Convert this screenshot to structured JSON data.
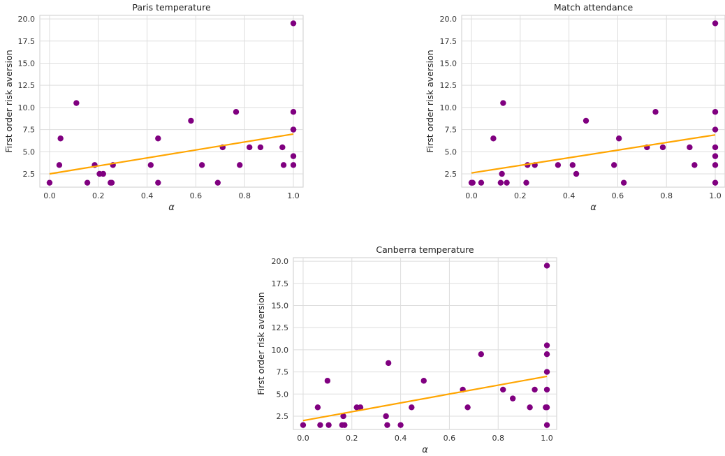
{
  "colors": {
    "points": "#800080",
    "fit_line": "#FFA500",
    "grid": "#DDDDDD",
    "spine": "#CCCCCC"
  },
  "chart_data": [
    {
      "type": "scatter",
      "title": "Paris temperature",
      "xlabel": "α",
      "ylabel": "First order risk aversion",
      "xlim": [
        -0.04,
        1.04
      ],
      "ylim": [
        1.0,
        20.4
      ],
      "xticks": [
        "0.0",
        "0.2",
        "0.4",
        "0.6",
        "0.8",
        "1.0"
      ],
      "xtick_values": [
        0.0,
        0.2,
        0.4,
        0.6,
        0.8,
        1.0
      ],
      "yticks": [
        "2.5",
        "5.0",
        "7.5",
        "10.0",
        "12.5",
        "15.0",
        "17.5",
        "20.0"
      ],
      "ytick_values": [
        2.5,
        5.0,
        7.5,
        10.0,
        12.5,
        15.0,
        17.5,
        20.0
      ],
      "grid": true,
      "points": [
        [
          0.0,
          1.5
        ],
        [
          0.04,
          3.5
        ],
        [
          0.045,
          6.5
        ],
        [
          0.11,
          10.5
        ],
        [
          0.155,
          1.5
        ],
        [
          0.185,
          3.5
        ],
        [
          0.205,
          2.5
        ],
        [
          0.22,
          2.5
        ],
        [
          0.25,
          1.5
        ],
        [
          0.255,
          1.5
        ],
        [
          0.26,
          3.5
        ],
        [
          0.415,
          3.5
        ],
        [
          0.445,
          1.5
        ],
        [
          0.445,
          6.5
        ],
        [
          0.58,
          8.5
        ],
        [
          0.625,
          3.5
        ],
        [
          0.69,
          1.5
        ],
        [
          0.71,
          5.5
        ],
        [
          0.765,
          9.5
        ],
        [
          0.78,
          3.5
        ],
        [
          0.82,
          5.5
        ],
        [
          0.865,
          5.5
        ],
        [
          0.955,
          5.5
        ],
        [
          0.96,
          3.5
        ],
        [
          1.0,
          19.5
        ],
        [
          1.0,
          9.5
        ],
        [
          1.0,
          7.5
        ],
        [
          1.0,
          7.5
        ],
        [
          1.0,
          4.5
        ],
        [
          1.0,
          3.5
        ]
      ],
      "fit_line": [
        [
          0.0,
          2.5
        ],
        [
          1.0,
          7.0
        ]
      ]
    },
    {
      "type": "scatter",
      "title": "Match attendance",
      "xlabel": "α",
      "ylabel": "First order risk aversion",
      "xlim": [
        -0.04,
        1.04
      ],
      "ylim": [
        1.0,
        20.4
      ],
      "xticks": [
        "0.0",
        "0.2",
        "0.4",
        "0.6",
        "0.8",
        "1.0"
      ],
      "xtick_values": [
        0.0,
        0.2,
        0.4,
        0.6,
        0.8,
        1.0
      ],
      "yticks": [
        "2.5",
        "5.0",
        "7.5",
        "10.0",
        "12.5",
        "15.0",
        "17.5",
        "20.0"
      ],
      "ytick_values": [
        2.5,
        5.0,
        7.5,
        10.0,
        12.5,
        15.0,
        17.5,
        20.0
      ],
      "grid": true,
      "points": [
        [
          0.0,
          1.5
        ],
        [
          0.005,
          1.5
        ],
        [
          0.04,
          1.5
        ],
        [
          0.09,
          6.5
        ],
        [
          0.12,
          1.5
        ],
        [
          0.125,
          2.5
        ],
        [
          0.13,
          10.5
        ],
        [
          0.145,
          1.5
        ],
        [
          0.225,
          1.5
        ],
        [
          0.23,
          3.5
        ],
        [
          0.26,
          3.5
        ],
        [
          0.355,
          3.5
        ],
        [
          0.415,
          3.5
        ],
        [
          0.43,
          2.5
        ],
        [
          0.47,
          8.5
        ],
        [
          0.585,
          3.5
        ],
        [
          0.605,
          6.5
        ],
        [
          0.625,
          1.5
        ],
        [
          0.72,
          5.5
        ],
        [
          0.755,
          9.5
        ],
        [
          0.785,
          5.5
        ],
        [
          0.895,
          5.5
        ],
        [
          0.915,
          3.5
        ],
        [
          1.0,
          19.5
        ],
        [
          1.0,
          9.5
        ],
        [
          1.0,
          7.5
        ],
        [
          1.0,
          5.5
        ],
        [
          1.0,
          4.5
        ],
        [
          1.0,
          3.5
        ],
        [
          1.0,
          1.5
        ]
      ],
      "fit_line": [
        [
          0.0,
          2.6
        ],
        [
          1.0,
          6.9
        ]
      ]
    },
    {
      "type": "scatter",
      "title": "Canberra temperature",
      "xlabel": "α",
      "ylabel": "First order risk aversion",
      "xlim": [
        -0.04,
        1.04
      ],
      "ylim": [
        1.0,
        20.4
      ],
      "xticks": [
        "0.0",
        "0.2",
        "0.4",
        "0.6",
        "0.8",
        "1.0"
      ],
      "xtick_values": [
        0.0,
        0.2,
        0.4,
        0.6,
        0.8,
        1.0
      ],
      "yticks": [
        "2.5",
        "5.0",
        "7.5",
        "10.0",
        "12.5",
        "15.0",
        "17.5",
        "20.0"
      ],
      "ytick_values": [
        2.5,
        5.0,
        7.5,
        10.0,
        12.5,
        15.0,
        17.5,
        20.0
      ],
      "grid": true,
      "points": [
        [
          0.0,
          1.5
        ],
        [
          0.06,
          3.5
        ],
        [
          0.07,
          1.5
        ],
        [
          0.1,
          6.5
        ],
        [
          0.105,
          1.5
        ],
        [
          0.16,
          1.5
        ],
        [
          0.165,
          2.5
        ],
        [
          0.17,
          1.5
        ],
        [
          0.22,
          3.5
        ],
        [
          0.235,
          3.5
        ],
        [
          0.34,
          2.5
        ],
        [
          0.345,
          1.5
        ],
        [
          0.35,
          8.5
        ],
        [
          0.4,
          1.5
        ],
        [
          0.445,
          3.5
        ],
        [
          0.495,
          6.5
        ],
        [
          0.655,
          5.5
        ],
        [
          0.675,
          3.5
        ],
        [
          0.73,
          9.5
        ],
        [
          0.82,
          5.5
        ],
        [
          0.86,
          4.5
        ],
        [
          0.93,
          3.5
        ],
        [
          0.95,
          5.5
        ],
        [
          0.995,
          3.5
        ],
        [
          1.0,
          19.5
        ],
        [
          1.0,
          10.5
        ],
        [
          1.0,
          9.5
        ],
        [
          1.0,
          7.5
        ],
        [
          1.0,
          5.5
        ],
        [
          1.0,
          3.5
        ],
        [
          1.0,
          1.5
        ]
      ],
      "fit_line": [
        [
          0.0,
          2.0
        ],
        [
          1.0,
          7.0
        ]
      ]
    }
  ]
}
